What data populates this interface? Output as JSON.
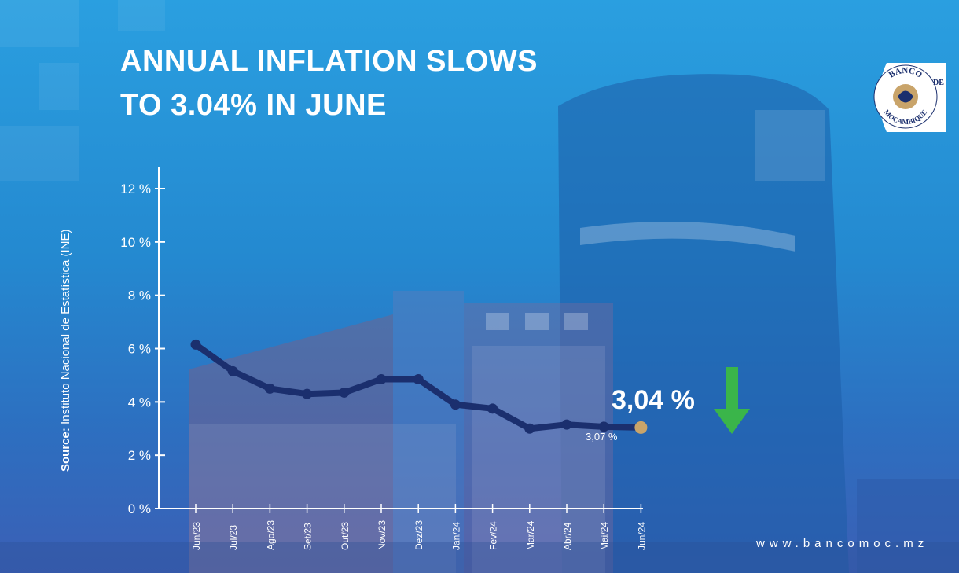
{
  "title": {
    "line1": "ANNUAL INFLATION SLOWS",
    "line2": "TO 3.04% IN JUNE"
  },
  "logo": {
    "text_top": "BANCO",
    "text_mid": "DE",
    "text_bottom": "MOÇAMBIQUE"
  },
  "source": {
    "label": "Source:",
    "text": " Instituto Nacional de Estatística (INE)"
  },
  "website": "www.bancomoc.mz",
  "annotations": {
    "latest_value": "3,04 %",
    "previous_value": "3,07 %"
  },
  "colors": {
    "line": "#1b2f6e",
    "marker": "#1b2f6e",
    "highlight": "#c9a46a",
    "arrow": "#3ab54a",
    "axis": "#ffffff"
  },
  "chart_data": {
    "type": "line",
    "title": "ANNUAL INFLATION SLOWS TO 3.04% IN JUNE",
    "xlabel": "",
    "ylabel": "",
    "categories": [
      "Jun/23",
      "Jul/23",
      "Ago/23",
      "Set/23",
      "Out/23",
      "Nov/23",
      "Dez/23",
      "Jan/24",
      "Fev/24",
      "Mar/24",
      "Abr/24",
      "Mai/24",
      "Jun/24"
    ],
    "series": [
      {
        "values": [
          6.15,
          5.15,
          4.5,
          4.3,
          4.35,
          4.85,
          4.85,
          3.9,
          3.75,
          3.0,
          3.15,
          3.07,
          3.04
        ]
      }
    ],
    "ylim": [
      0,
      12.5
    ],
    "yticks": [
      0,
      2,
      4,
      6,
      8,
      10,
      12
    ],
    "ytick_labels": [
      "0 %",
      "2 %",
      "4 %",
      "6 %",
      "8 %",
      "10 %",
      "12 %"
    ],
    "grid": false
  }
}
